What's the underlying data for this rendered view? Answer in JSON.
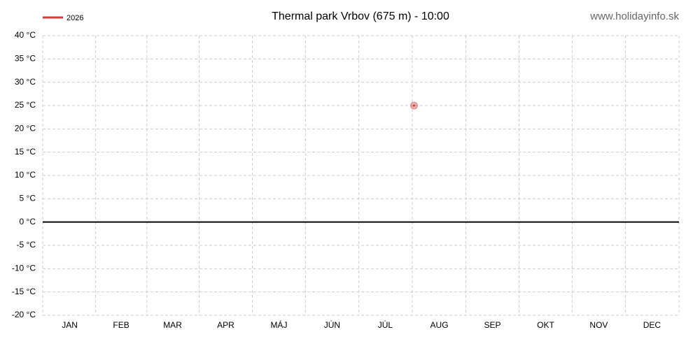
{
  "chart_data": {
    "type": "line",
    "title": "Thermal park Vrbov (675 m) - 10:00",
    "source": "www.holidayinfo.sk",
    "x": [
      213
    ],
    "series": [
      {
        "name": "2026",
        "color": "#d33a3a",
        "values": [
          25
        ]
      }
    ],
    "xlim": [
      0,
      365
    ],
    "xticks": [
      {
        "value": 15.5,
        "label": "JAN"
      },
      {
        "value": 45,
        "label": "FEB"
      },
      {
        "value": 74.5,
        "label": "MAR"
      },
      {
        "value": 105,
        "label": "APR"
      },
      {
        "value": 135.5,
        "label": "MÁJ"
      },
      {
        "value": 166,
        "label": "JÚN"
      },
      {
        "value": 196.5,
        "label": "JÚL"
      },
      {
        "value": 227.5,
        "label": "AUG"
      },
      {
        "value": 258,
        "label": "SEP"
      },
      {
        "value": 288.5,
        "label": "OKT"
      },
      {
        "value": 319,
        "label": "NOV"
      },
      {
        "value": 349.5,
        "label": "DEC"
      }
    ],
    "ylim": [
      -20,
      40
    ],
    "yticks": [
      {
        "value": 40,
        "label": "40 °C"
      },
      {
        "value": 35,
        "label": "35 °C"
      },
      {
        "value": 30,
        "label": "30 °C"
      },
      {
        "value": 25,
        "label": "25 °C"
      },
      {
        "value": 20,
        "label": "20 °C"
      },
      {
        "value": 15,
        "label": "15 °C"
      },
      {
        "value": 10,
        "label": "10 °C"
      },
      {
        "value": 5,
        "label": "5 °C"
      },
      {
        "value": 0,
        "label": "0 °C"
      },
      {
        "value": -5,
        "label": "-5 °C"
      },
      {
        "value": -10,
        "label": "-10 °C"
      },
      {
        "value": -15,
        "label": "-15 °C"
      },
      {
        "value": -20,
        "label": "-20 °C"
      }
    ],
    "grid": true
  }
}
